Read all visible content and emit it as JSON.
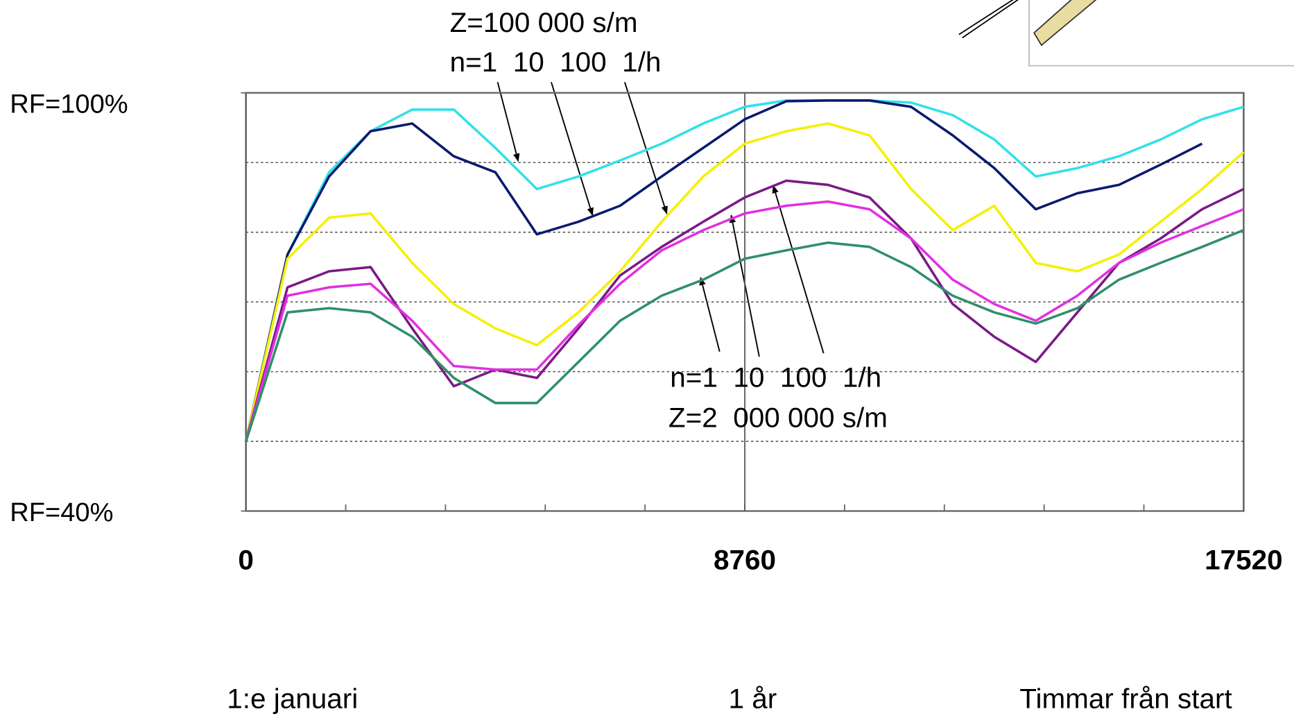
{
  "chart_data": {
    "type": "line",
    "annotations": [
      "Z=100 000 s/m",
      "n=1  10  100  1/h",
      "n=1  10  100  1/h",
      "Z=2  000 000 s/m"
    ],
    "x_captions": [
      "1:e januari",
      "1 år",
      "Timmar från start"
    ],
    "x": [
      0,
      730,
      1460,
      2190,
      2920,
      3650,
      4380,
      5110,
      5840,
      6570,
      7300,
      8030,
      8760,
      9490,
      10220,
      10950,
      11680,
      12410,
      13140,
      13870,
      14600,
      15330,
      16060,
      16790,
      17520
    ],
    "xlim": [
      0,
      17520
    ],
    "xticks": [
      0,
      8760,
      17520
    ],
    "xgrid": true,
    "ylim": [
      40,
      100
    ],
    "yticks": [
      {
        "value": 100,
        "label": "RF=100%"
      },
      {
        "value": 40,
        "label": "RF=40%"
      }
    ],
    "grid_lines": [
      50,
      60,
      70,
      80,
      90
    ],
    "series": [
      {
        "color": "#33e0e8",
        "values": [
          50,
          76.8,
          88.6,
          94.5,
          97.6,
          97.6,
          92.1,
          86.2,
          88,
          90.3,
          92.7,
          95.6,
          98,
          98.9,
          98.9,
          98.9,
          98.6,
          96.8,
          93.3,
          88,
          89.2,
          90.9,
          93.3,
          96.2,
          98
        ]
      },
      {
        "color": "#0a1a6e",
        "values": [
          50,
          76.8,
          88,
          94.5,
          95.6,
          90.9,
          88.6,
          79.7,
          81.5,
          83.8,
          88,
          92.1,
          96.2,
          98.8,
          98.9,
          98.9,
          98,
          93.9,
          89.2,
          83.3,
          85.6,
          86.8,
          89.7,
          92.7,
          null
        ]
      },
      {
        "color": "#f5f000",
        "values": [
          50,
          76.2,
          82.1,
          82.7,
          75.6,
          69.7,
          66.2,
          63.8,
          68.5,
          74.4,
          81.5,
          88,
          92.7,
          94.5,
          95.6,
          93.9,
          86.2,
          80.3,
          83.8,
          75.6,
          74.4,
          76.8,
          81.5,
          86.2,
          91.5
        ]
      },
      {
        "color": "#7a1a86",
        "values": [
          50,
          72.1,
          74.4,
          75,
          66.2,
          57.9,
          60.3,
          59.1,
          66.2,
          73.8,
          77.9,
          81.5,
          85,
          87.4,
          86.8,
          85,
          79.1,
          69.7,
          65,
          61.4,
          68.5,
          75.6,
          79.1,
          83.3,
          86.2
        ]
      },
      {
        "color": "#e030e0",
        "values": [
          50,
          70.9,
          72.1,
          72.6,
          67.3,
          60.8,
          60.3,
          60.3,
          66.7,
          72.6,
          77.4,
          80.3,
          82.7,
          83.8,
          84.4,
          83.3,
          79.1,
          73.2,
          69.7,
          67.3,
          70.9,
          75.6,
          78.5,
          80.9,
          83.3
        ]
      },
      {
        "color": "#2f8f6a",
        "values": [
          50,
          68.5,
          69.1,
          68.5,
          65,
          59.1,
          55.5,
          55.5,
          61.4,
          67.3,
          70.9,
          73.2,
          76.2,
          77.4,
          78.5,
          77.9,
          75,
          70.9,
          68.5,
          66.9,
          69.1,
          73.2,
          75.6,
          77.9,
          80.3
        ]
      }
    ]
  }
}
